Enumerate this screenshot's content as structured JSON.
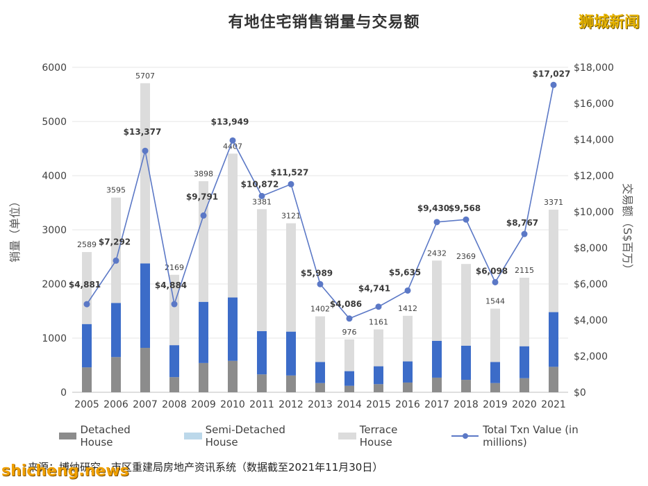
{
  "brand": "狮城新闻",
  "watermark": "shicheng.news",
  "source": "来源：博纳研究，市区重建局房地产资讯系统（数据截至2021年11月30日）",
  "colors": {
    "detached": "#8c8c8c",
    "semi_detached": "#3c6cc8",
    "terrace": "#dcdcdc",
    "line": "#5b78c6"
  },
  "chart_data": {
    "type": "bar",
    "subtype": "stacked-bar-with-line",
    "title": "有地住宅销售销量与交易额",
    "ylabel_left": "销量（单位）",
    "ylabel_right": "交易额（S$百万）",
    "ylim_left": [
      0,
      6000
    ],
    "ylim_right": [
      0,
      18000
    ],
    "yticks_left": [
      "0",
      "1000",
      "2000",
      "3000",
      "4000",
      "5000",
      "6000"
    ],
    "yticks_right": [
      "$0",
      "$2,000",
      "$4,000",
      "$6,000",
      "$8,000",
      "$10,000",
      "$12,000",
      "$14,000",
      "$16,000",
      "$18,000"
    ],
    "grid": true,
    "legend_position": "bottom",
    "categories": [
      "2005",
      "2006",
      "2007",
      "2008",
      "2009",
      "2010",
      "2011",
      "2012",
      "2013",
      "2014",
      "2015",
      "2016",
      "2017",
      "2018",
      "2019",
      "2020",
      "2021"
    ],
    "series": [
      {
        "name": "Detached House",
        "values": [
          460,
          650,
          820,
          280,
          540,
          580,
          330,
          310,
          170,
          120,
          150,
          180,
          270,
          230,
          170,
          260,
          470
        ]
      },
      {
        "name": "Semi-Detached House",
        "values": [
          800,
          1000,
          1560,
          590,
          1130,
          1170,
          800,
          810,
          390,
          270,
          330,
          390,
          680,
          630,
          390,
          590,
          1010
        ]
      },
      {
        "name": "Terrace House",
        "values": [
          1329,
          1945,
          3327,
          1299,
          2228,
          2657,
          2251,
          2001,
          842,
          586,
          681,
          842,
          1482,
          1509,
          984,
          1265,
          1891
        ]
      },
      {
        "name": "Total Txn Value (in millions)",
        "values": [
          4881,
          7292,
          13377,
          4884,
          9791,
          13949,
          10872,
          11527,
          5989,
          4086,
          4741,
          5635,
          9430,
          9568,
          6098,
          8767,
          17027
        ]
      }
    ],
    "bar_totals": [
      "2589",
      "3595",
      "5707",
      "2169",
      "3898",
      "4407",
      "3381",
      "3121",
      "1402",
      "976",
      "1161",
      "1412",
      "2432",
      "2369",
      "1544",
      "2115",
      "3371"
    ],
    "line_labels": [
      "$4,881",
      "$7,292",
      "$13,377",
      "$4,884",
      "$9,791",
      "$13,949",
      "$10,872",
      "$11,527",
      "$5,989",
      "$4,086",
      "$4,741",
      "$5,635",
      "$9,430",
      "$9,568",
      "$6,098",
      "$8,767",
      "$17,027"
    ]
  }
}
